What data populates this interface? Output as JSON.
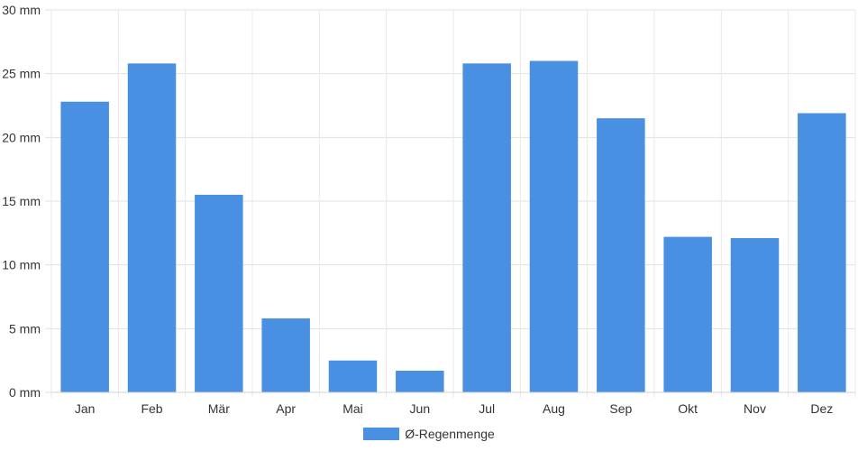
{
  "chart_data": {
    "type": "bar",
    "title": "",
    "xlabel": "",
    "ylabel": "",
    "categories": [
      "Jan",
      "Feb",
      "Mär",
      "Apr",
      "Mai",
      "Jun",
      "Jul",
      "Aug",
      "Sep",
      "Okt",
      "Nov",
      "Dez"
    ],
    "series": [
      {
        "name": "Ø-Regenmenge",
        "values": [
          22.8,
          25.8,
          15.5,
          5.8,
          2.5,
          1.7,
          25.8,
          26.0,
          21.5,
          12.2,
          12.1,
          21.9
        ],
        "color": "#4a90e2"
      }
    ],
    "ylim": [
      0,
      30
    ],
    "yticks": [
      {
        "value": 0,
        "label": "0 mm"
      },
      {
        "value": 5,
        "label": "5 mm"
      },
      {
        "value": 10,
        "label": "10 mm"
      },
      {
        "value": 15,
        "label": "15 mm"
      },
      {
        "value": 20,
        "label": "20 mm"
      },
      {
        "value": 25,
        "label": "25 mm"
      },
      {
        "value": 30,
        "label": "30 mm"
      }
    ],
    "grid": true,
    "legend_position": "bottom"
  }
}
